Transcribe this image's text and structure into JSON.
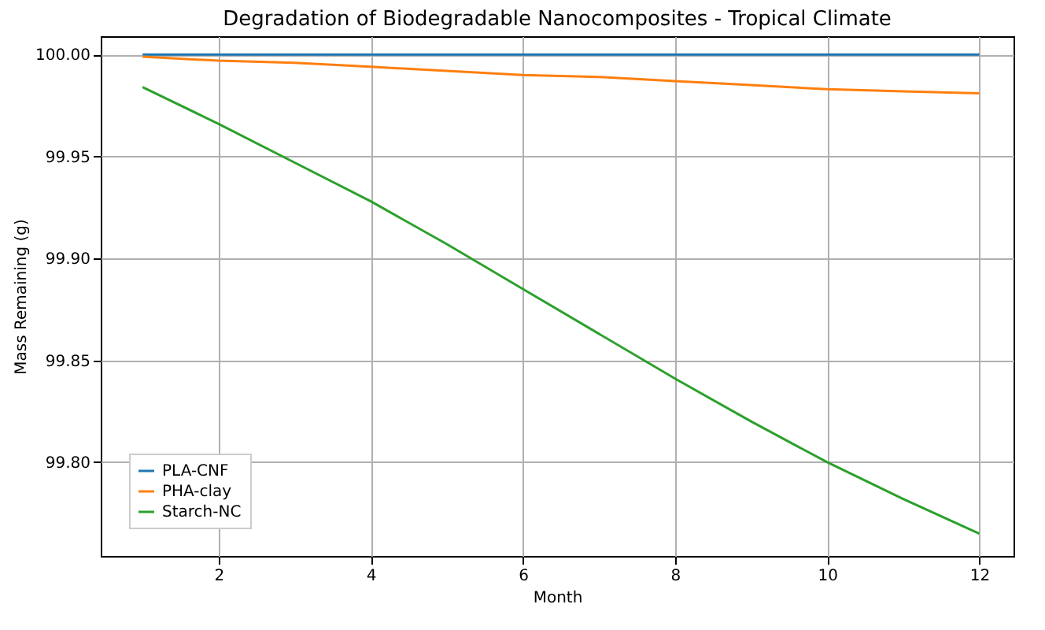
{
  "chart_data": {
    "type": "line",
    "title": "Degradation of Biodegradable Nanocomposites - Tropical Climate",
    "xlabel": "Month",
    "ylabel": "Mass Remaining (g)",
    "x": [
      1,
      2,
      3,
      4,
      5,
      6,
      7,
      8,
      9,
      10,
      11,
      12
    ],
    "series": [
      {
        "name": "PLA-CNF",
        "color": "#1f77b4",
        "values": [
          100.0,
          100.0,
          100.0,
          100.0,
          100.0,
          100.0,
          100.0,
          100.0,
          100.0,
          100.0,
          100.0,
          100.0
        ]
      },
      {
        "name": "PHA-clay",
        "color": "#ff7f0e",
        "values": [
          99.999,
          99.997,
          99.996,
          99.994,
          99.992,
          99.99,
          99.989,
          99.987,
          99.985,
          99.983,
          99.982,
          99.981
        ]
      },
      {
        "name": "Starch-NC",
        "color": "#2ca02c",
        "values": [
          99.984,
          99.966,
          99.947,
          99.928,
          99.907,
          99.885,
          99.863,
          99.841,
          99.82,
          99.8,
          99.782,
          99.765
        ]
      }
    ],
    "xlim": [
      0.45,
      12.45
    ],
    "xticks": [
      2,
      4,
      6,
      8,
      10,
      12
    ],
    "ylim": [
      99.754,
      100.009
    ],
    "yticks": [
      {
        "value": 99.8,
        "label": "99.80"
      },
      {
        "value": 99.85,
        "label": "99.85"
      },
      {
        "value": 99.9,
        "label": "99.90"
      },
      {
        "value": 99.95,
        "label": "99.95"
      },
      {
        "value": 100,
        "label": "100.00"
      }
    ],
    "grid": true,
    "legend": "bottom left",
    "line_style": "solid"
  }
}
